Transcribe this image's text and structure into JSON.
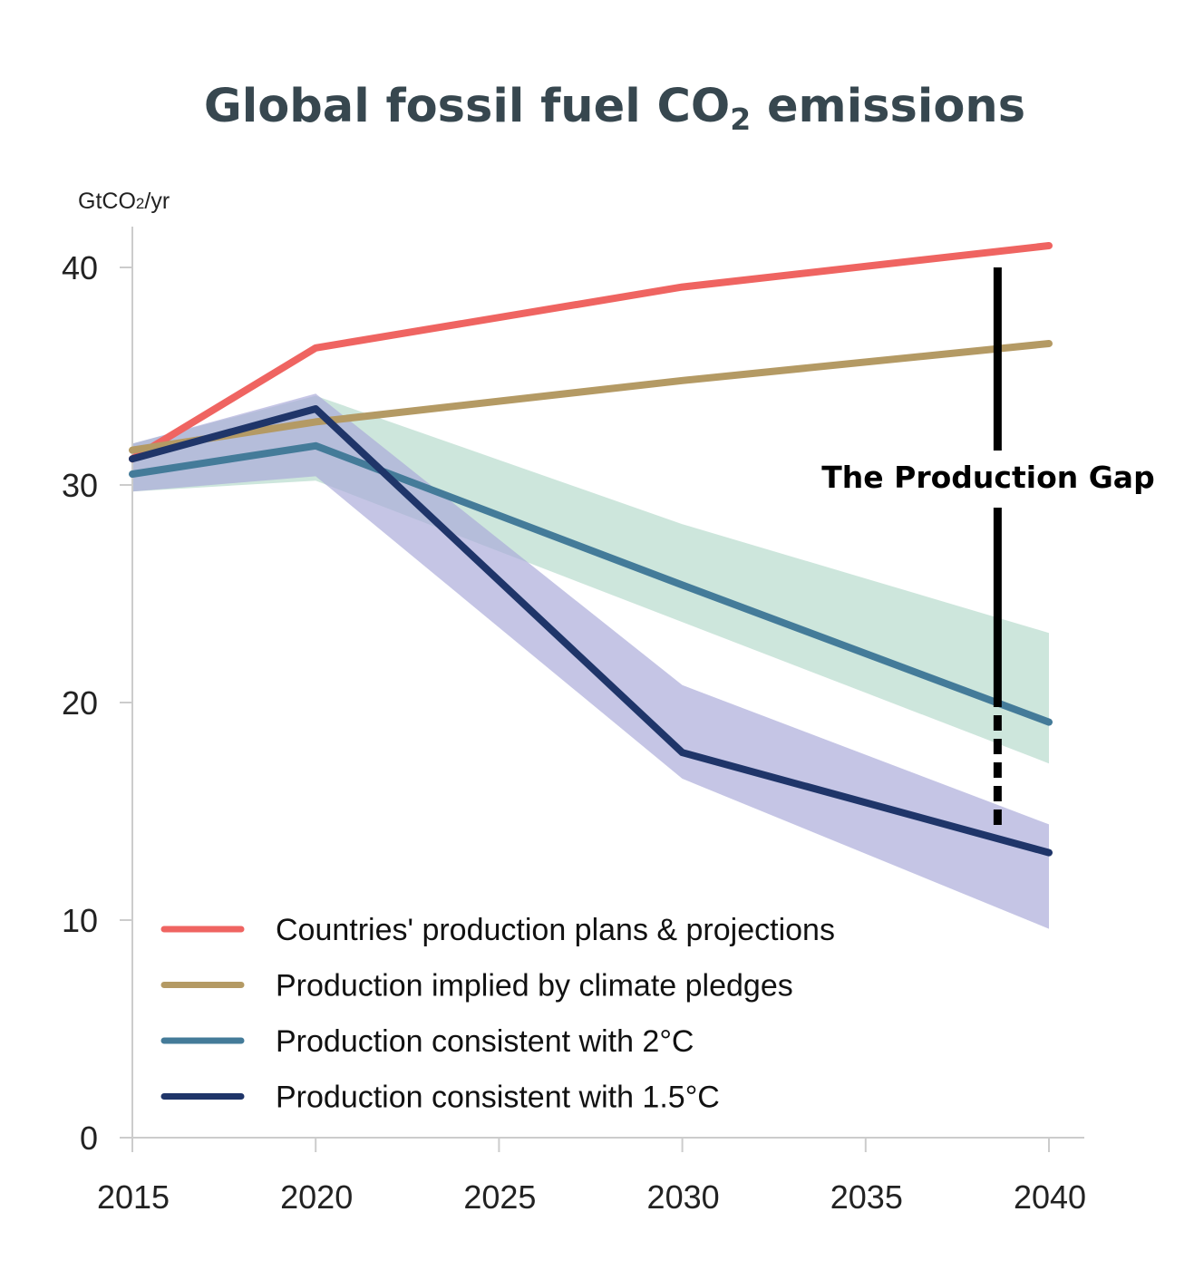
{
  "chart_data": {
    "type": "line",
    "title": "Global fossil fuel CO",
    "title_subscript": "2",
    "title_suffix": " emissions",
    "ylabel_unit": "GtCO",
    "ylabel_unit_subscript": "2",
    "ylabel_unit_suffix": "/yr",
    "xlabel": "",
    "xlim": [
      2015,
      2040
    ],
    "ylim": [
      0,
      42
    ],
    "x_ticks": [
      "2015",
      "2020",
      "2025",
      "2030",
      "2035",
      "2040"
    ],
    "y_ticks": [
      "0",
      "10",
      "20",
      "30",
      "40"
    ],
    "x": [
      2015,
      2020,
      2030,
      2040
    ],
    "series": [
      {
        "key": "plans",
        "name": "Countries' production plans & projections",
        "color": "#ef6461",
        "values": [
          31.2,
          36.3,
          39.1,
          41.0
        ]
      },
      {
        "key": "pledges",
        "name": "Production implied by climate pledges",
        "color": "#b49a64",
        "values": [
          31.6,
          32.9,
          34.8,
          36.5
        ]
      },
      {
        "key": "c2",
        "name": "Production consistent with 2°C",
        "color": "#447b99",
        "values": [
          30.5,
          31.8,
          25.4,
          19.1
        ]
      },
      {
        "key": "c15",
        "name": "Production consistent with 1.5°C",
        "color": "#1f3569",
        "values": [
          31.2,
          33.5,
          17.7,
          13.1
        ]
      }
    ],
    "ranges": [
      {
        "name": "2°C range",
        "color": "#b2d8c9",
        "upper": [
          31.9,
          34.1,
          28.2,
          23.2
        ],
        "lower": [
          29.7,
          30.2,
          23.7,
          17.2
        ]
      },
      {
        "name": "1.5°C range",
        "color": "#aaaad8",
        "upper": [
          31.9,
          34.2,
          20.8,
          14.4
        ],
        "lower": [
          29.7,
          30.4,
          16.5,
          9.6
        ]
      }
    ],
    "annotation": {
      "label": "The Production Gap",
      "x": 2038.6,
      "y_top": 40.0,
      "y_solid_bottom": 20.5,
      "y_bottom": 14.2
    }
  }
}
